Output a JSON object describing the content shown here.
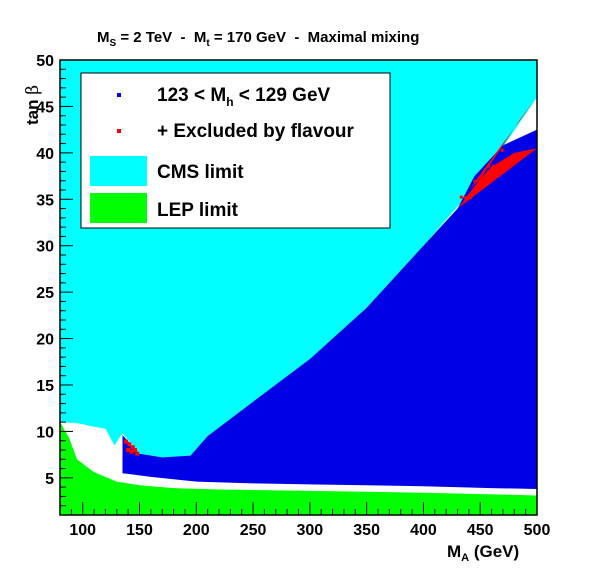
{
  "chart_data": {
    "type": "area",
    "title": "M_S = 2 TeV  -  M_t = 170 GeV  -  Maximal mixing",
    "title_parts": {
      "ms": "M",
      "ms_sub": "S",
      "ms_val": " = 2 TeV  -  ",
      "mt": "M",
      "mt_sub": "t",
      "mt_val": " = 170 GeV  -  Maximal mixing"
    },
    "xlabel": {
      "main": "M",
      "sub": "A",
      "unit": " (GeV)"
    },
    "ylabel": {
      "main": "tan ",
      "symbol": "β"
    },
    "xlim": [
      80,
      500
    ],
    "ylim": [
      1,
      50
    ],
    "x_ticks": [
      100,
      150,
      200,
      250,
      300,
      350,
      400,
      450,
      500
    ],
    "y_ticks": [
      5,
      10,
      15,
      20,
      25,
      30,
      35,
      40,
      45,
      50
    ],
    "grid": false,
    "legend_position": "top-left",
    "colors": {
      "cms": "#00ffff",
      "lep": "#00ff00",
      "mh": "#0000e6",
      "flavour": "#ff0000",
      "allowed": "#ffffff"
    },
    "legend": [
      {
        "label": "123 < M",
        "sub": "h",
        "after": " < 129 GeV",
        "kind": "marker",
        "color": "#0000e6"
      },
      {
        "label": "+ Excluded by flavour",
        "kind": "marker",
        "color": "#ff0000"
      },
      {
        "label": "CMS limit",
        "kind": "box",
        "color": "#00ffff"
      },
      {
        "label": "LEP limit",
        "kind": "box",
        "color": "#00ff00"
      }
    ],
    "series": [
      {
        "name": "CMS limit",
        "kind": "region-above",
        "boundary": [
          [
            80,
            11
          ],
          [
            95,
            10.9
          ],
          [
            110,
            10.5
          ],
          [
            120,
            10.3
          ],
          [
            128,
            8.5
          ],
          [
            135,
            9.8
          ],
          [
            150,
            7.6
          ],
          [
            170,
            7.2
          ],
          [
            195,
            7.4
          ],
          [
            210,
            9.5
          ],
          [
            250,
            13.2
          ],
          [
            300,
            17.8
          ],
          [
            350,
            23.3
          ],
          [
            400,
            30.0
          ],
          [
            450,
            37.0
          ],
          [
            500,
            46.0
          ],
          [
            500,
            50
          ]
        ]
      },
      {
        "name": "LEP limit",
        "kind": "region-below",
        "boundary": [
          [
            80,
            11
          ],
          [
            88,
            9.3
          ],
          [
            95,
            7.0
          ],
          [
            110,
            5.6
          ],
          [
            130,
            4.6
          ],
          [
            150,
            4.2
          ],
          [
            180,
            3.9
          ],
          [
            220,
            3.75
          ],
          [
            300,
            3.6
          ],
          [
            400,
            3.4
          ],
          [
            500,
            3.1
          ]
        ]
      },
      {
        "name": "123 < M_h < 129 GeV",
        "kind": "region",
        "upper": [
          [
            135,
            9.6
          ],
          [
            150,
            7.6
          ],
          [
            170,
            7.2
          ],
          [
            195,
            7.4
          ],
          [
            210,
            9.5
          ],
          [
            250,
            13.2
          ],
          [
            300,
            17.8
          ],
          [
            350,
            23.3
          ],
          [
            400,
            30.0
          ],
          [
            430,
            34.0
          ],
          [
            445,
            37.5
          ],
          [
            470,
            40.8
          ],
          [
            500,
            42.5
          ]
        ],
        "lower": [
          [
            135,
            5.5
          ],
          [
            160,
            5.1
          ],
          [
            200,
            4.6
          ],
          [
            250,
            4.4
          ],
          [
            300,
            4.3
          ],
          [
            400,
            4.1
          ],
          [
            460,
            3.9
          ],
          [
            500,
            3.8
          ]
        ]
      },
      {
        "name": "+ Excluded by flavour",
        "kind": "region",
        "upper": [
          [
            430,
            34.0
          ],
          [
            450,
            37.2
          ],
          [
            470,
            40.8
          ],
          [
            485,
            43.6
          ],
          [
            500,
            46.0
          ]
        ],
        "lower": [
          [
            500,
            40.5
          ],
          [
            480,
            40.0
          ],
          [
            460,
            38.5
          ],
          [
            440,
            36.0
          ]
        ]
      },
      {
        "name": "+ Excluded by flavour",
        "kind": "points",
        "points": [
          [
            138,
            8.9
          ],
          [
            141,
            8.6
          ],
          [
            144,
            8.3
          ],
          [
            146,
            8.0
          ],
          [
            148,
            7.6
          ],
          [
            140,
            8.0
          ],
          [
            143,
            7.8
          ]
        ]
      }
    ]
  }
}
